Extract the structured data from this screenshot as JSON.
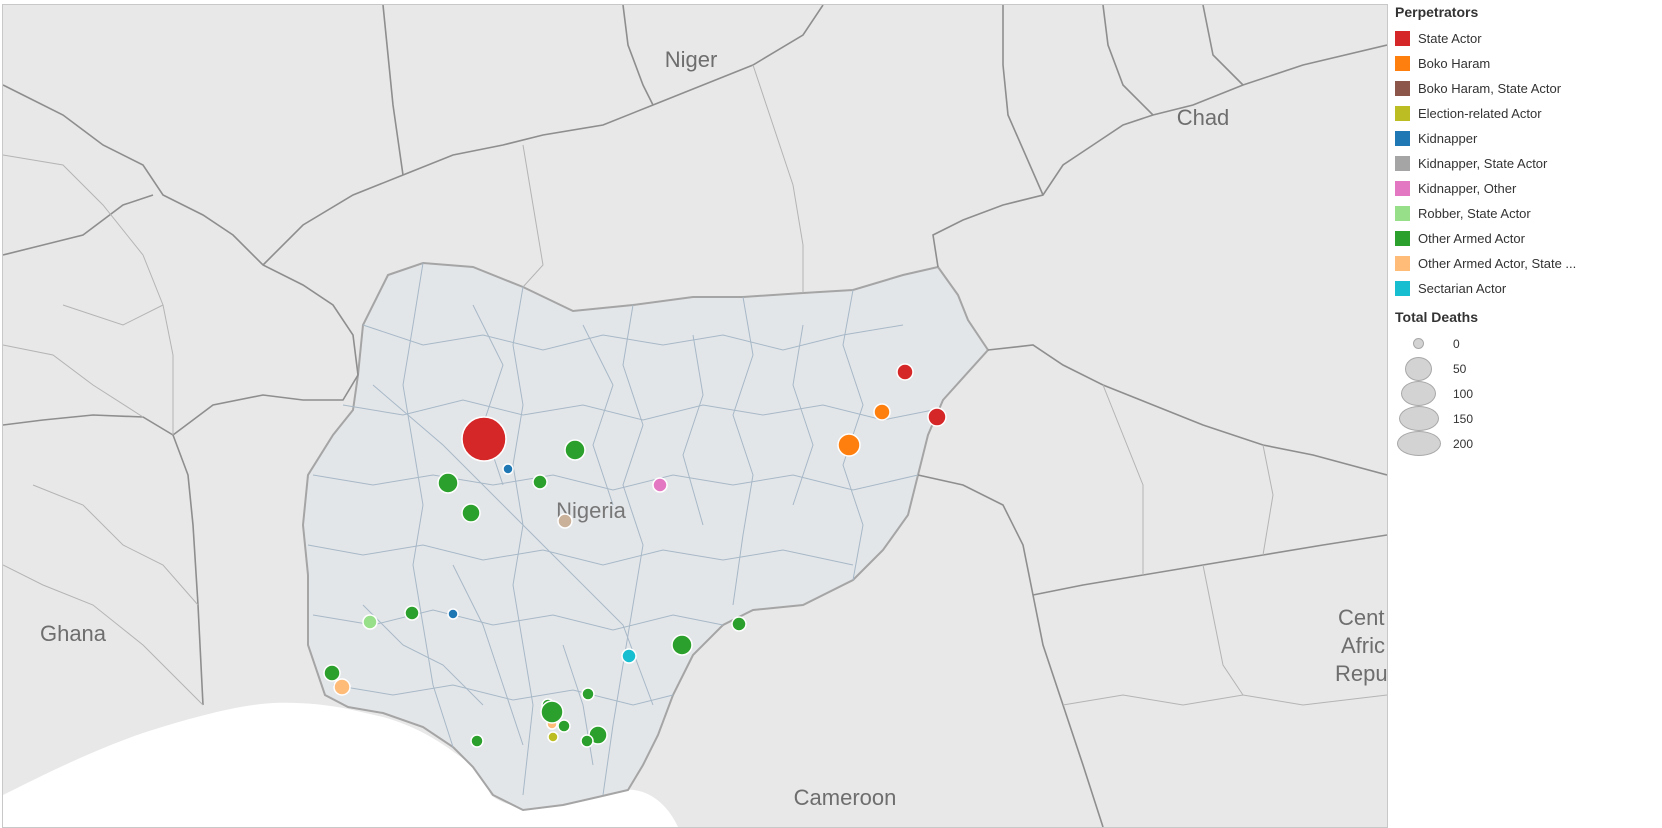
{
  "map": {
    "country_labels": {
      "niger": "Niger",
      "chad": "Chad",
      "ghana": "Ghana",
      "nigeria": "Nigeria",
      "cameroon": "Cameroon",
      "car_line1": "Cent",
      "car_line2": "Afric",
      "car_line3": "Repu"
    },
    "colors": {
      "land": "#e8e8e8",
      "nigeria_land": "#e4e6e8",
      "water": "#ffffff",
      "border": "#8a8a8a",
      "river": "#9fb4c6"
    }
  },
  "legend": {
    "perpetrators_title": "Perpetrators",
    "perpetrators": [
      {
        "label": "State Actor",
        "color": "#d62728"
      },
      {
        "label": "Boko Haram",
        "color": "#ff7f0e"
      },
      {
        "label": "Boko Haram, State Actor",
        "color": "#8c564b"
      },
      {
        "label": "Election-related Actor",
        "color": "#bcbd22"
      },
      {
        "label": "Kidnapper",
        "color": "#1f77b4"
      },
      {
        "label": "Kidnapper, State Actor",
        "color": "#a5a5a5"
      },
      {
        "label": "Kidnapper, Other",
        "color": "#e377c2"
      },
      {
        "label": "Robber, State Actor",
        "color": "#98df8a"
      },
      {
        "label": "Other Armed Actor",
        "color": "#2ca02c"
      },
      {
        "label": "Other Armed Actor, State ...",
        "color": "#ffbb78"
      },
      {
        "label": "Sectarian Actor",
        "color": "#17becf"
      }
    ],
    "deaths_title": "Total Deaths",
    "deaths_sizes": [
      "0",
      "50",
      "100",
      "150",
      "200"
    ]
  }
}
